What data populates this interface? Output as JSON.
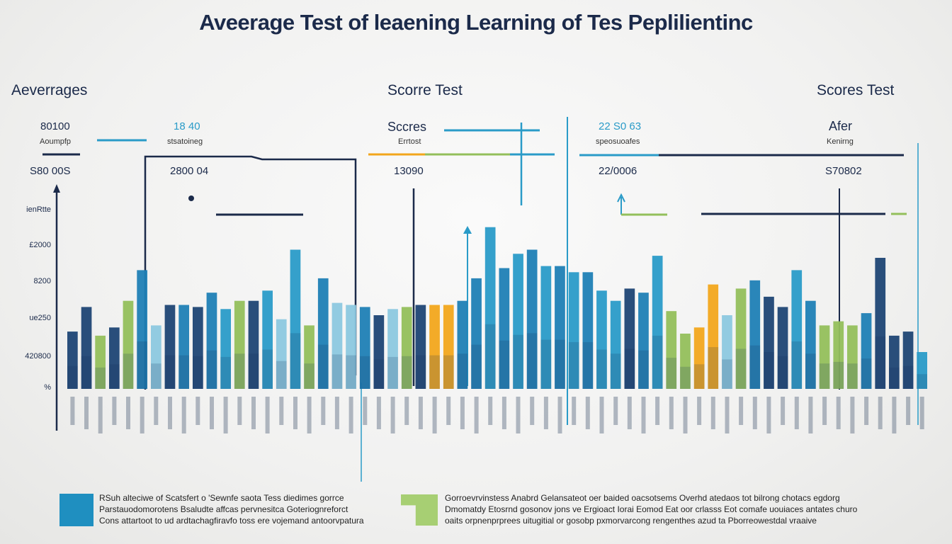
{
  "title": "Aveerage Test of leaening Learning of Tes Peplilientinc",
  "headers": {
    "left": "Aeverrages",
    "center": "Scorre Test",
    "right": "Scores Test"
  },
  "annotations": [
    {
      "value": "80100",
      "label": "Aoumpfp"
    },
    {
      "value": "18 40",
      "label": "stsatoineg"
    },
    {
      "value": "Sccres",
      "label": "Errtost"
    },
    {
      "value": "22 S0 63",
      "label": "speosuoafes"
    },
    {
      "value": "Afer",
      "label": "Kenirng"
    }
  ],
  "sub_values": [
    "S80 00S",
    "2800 04",
    "13090",
    "22/0006",
    "S70802"
  ],
  "colors": {
    "navy": "#1d4474",
    "blue": "#1f7fb5",
    "cyan": "#2a9bc8",
    "light": "#8cc8df",
    "green": "#93bf5b",
    "orange": "#f2a61c",
    "axis": "#1b2a4a"
  },
  "chart_data": {
    "type": "bar",
    "title": "Aveerage Test of leaening Learning of Tes Peplilientinc",
    "xlabel": "",
    "ylabel": "",
    "ylim": [
      0,
      100
    ],
    "yticks": [
      "%",
      "420800",
      "ue250",
      "8200",
      "£2000",
      "ienRtte"
    ],
    "grid": false,
    "values": [
      28,
      40,
      26,
      30,
      43,
      58,
      31,
      41,
      41,
      40,
      47,
      39,
      43,
      43,
      48,
      34,
      68,
      31,
      54,
      42,
      41,
      40,
      36,
      39,
      40,
      41,
      41,
      41,
      43,
      54,
      79,
      59,
      66,
      68,
      60,
      60,
      57,
      57,
      48,
      43,
      49,
      47,
      65,
      38,
      27,
      30,
      51,
      36,
      49,
      53,
      45,
      40,
      58,
      43,
      31,
      33,
      31,
      37,
      64,
      26,
      28,
      18
    ],
    "bar_colors": [
      "navy",
      "navy",
      "green",
      "navy",
      "green",
      "blue",
      "light",
      "navy",
      "blue",
      "navy",
      "blue",
      "cyan",
      "green",
      "navy",
      "cyan",
      "light",
      "cyan",
      "green",
      "blue",
      "light",
      "light",
      "blue",
      "navy",
      "light",
      "green",
      "navy",
      "orange",
      "orange",
      "blue",
      "blue",
      "cyan",
      "blue",
      "cyan",
      "blue",
      "cyan",
      "blue",
      "cyan",
      "blue",
      "cyan",
      "cyan",
      "navy",
      "blue",
      "cyan",
      "green",
      "green",
      "orange",
      "orange",
      "light",
      "green",
      "blue",
      "navy",
      "navy",
      "cyan",
      "blue",
      "green",
      "green",
      "green",
      "blue",
      "navy",
      "navy",
      "navy",
      "cyan"
    ]
  },
  "legend": {
    "left_lines": [
      "RSuh alteciwe of Scatsfert o 'Sewnfe saota Tess diedimes gorrce",
      "Parstauodomorotens Bsaludte affcas pervnesitca Goteriognreforct",
      "Cons attartoot to ud ardtachagfiravfo toss ere vojemand antoorvpatura"
    ],
    "right_lines": [
      "Gorroevrvinstess Anabrd Gelansateot oer baided oacsotsems Overhd atedaos tot bilrong chotacs egdorg",
      "Dmomatdy Etosrnd gosonov jons ve Ergioact Iorai Eomod Eat oor crlasss Eot comafe uouiaces antates churo",
      "oaits orpnenprprees uitugitial or gosobp pxmorvarcong rengenthes azud ta Pborreowestdal vraaive"
    ]
  }
}
